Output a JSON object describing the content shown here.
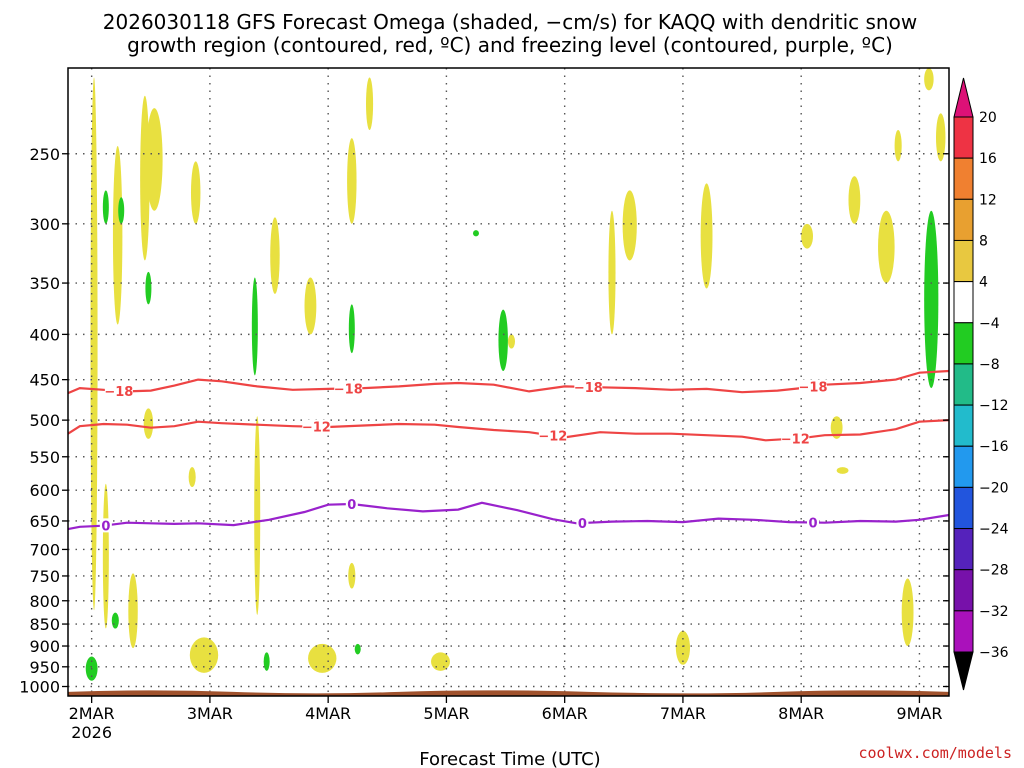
{
  "chart_data": {
    "type": "heatmap",
    "title_line1": "2026030118 GFS Forecast Omega (shaded, −cm/s) for KAQQ with dendritic snow",
    "title_line2": "growth region (contoured, red, ºC) and freezing level (contoured, purple, ºC)",
    "xlabel": "Forecast Time (UTC)",
    "credit": "coolwx.com/models",
    "x_range_days": [
      -0.2,
      7.25
    ],
    "y_range_hpa": [
      200,
      1025
    ],
    "x_ticks": [
      {
        "label": "2MAR",
        "day": 0,
        "sub": "2026"
      },
      {
        "label": "3MAR",
        "day": 1
      },
      {
        "label": "4MAR",
        "day": 2
      },
      {
        "label": "5MAR",
        "day": 3
      },
      {
        "label": "6MAR",
        "day": 4
      },
      {
        "label": "7MAR",
        "day": 5
      },
      {
        "label": "8MAR",
        "day": 6
      },
      {
        "label": "9MAR",
        "day": 7
      }
    ],
    "y_ticks": [
      {
        "label": "250",
        "p": 250
      },
      {
        "label": "300",
        "p": 300
      },
      {
        "label": "350",
        "p": 350
      },
      {
        "label": "400",
        "p": 400
      },
      {
        "label": "450",
        "p": 450
      },
      {
        "label": "500",
        "p": 500
      },
      {
        "label": "550",
        "p": 550
      },
      {
        "label": "600",
        "p": 600
      },
      {
        "label": "650",
        "p": 650
      },
      {
        "label": "700",
        "p": 700
      },
      {
        "label": "750",
        "p": 750
      },
      {
        "label": "800",
        "p": 800
      },
      {
        "label": "850",
        "p": 850
      },
      {
        "label": "900",
        "p": 900
      },
      {
        "label": "950",
        "p": 950
      },
      {
        "label": "1000",
        "p": 1000
      }
    ],
    "colorbar": {
      "levels": [
        {
          "label": "20",
          "color": "#ee3344"
        },
        {
          "label": "16",
          "color": "#f08030"
        },
        {
          "label": "12",
          "color": "#e8a030"
        },
        {
          "label": "8",
          "color": "#e8c840"
        },
        {
          "label": "4",
          "color": "#ffffff"
        },
        {
          "label": "−4",
          "color": "#22cc22"
        },
        {
          "label": "−8",
          "color": "#22bb88"
        },
        {
          "label": "−12",
          "color": "#22bbcc"
        },
        {
          "label": "−16",
          "color": "#2299ee"
        },
        {
          "label": "−20",
          "color": "#2255dd"
        },
        {
          "label": "−24",
          "color": "#5522bb"
        },
        {
          "label": "−28",
          "color": "#7711aa"
        },
        {
          "label": "−32",
          "color": "#aa11bb"
        },
        {
          "label": "−36",
          "color": "#aaaaaa"
        }
      ],
      "top_color": "#dd1177",
      "bottom_color": "#000000",
      "shade_color_up": "#e8e040",
      "shade_color_down": "#22cc22"
    },
    "contours": [
      {
        "name": "minus18",
        "label": "−18",
        "color": "#ee4444",
        "x": [
          -0.2,
          -0.1,
          0.1,
          0.3,
          0.5,
          0.7,
          0.9,
          1.1,
          1.4,
          1.7,
          2.0,
          2.3,
          2.6,
          2.9,
          3.1,
          3.4,
          3.7,
          4.0,
          4.3,
          4.6,
          4.9,
          5.2,
          5.5,
          5.8,
          6.0,
          6.2,
          6.5,
          6.8,
          7.0,
          7.25
        ],
        "p": [
          466,
          460,
          462,
          464,
          463,
          457,
          450,
          452,
          458,
          462,
          461,
          460,
          458,
          455,
          454,
          456,
          464,
          458,
          459,
          460,
          462,
          461,
          465,
          463,
          460,
          456,
          454,
          450,
          442,
          440
        ],
        "labels_at": [
          0.23,
          2.17,
          4.2,
          6.1
        ]
      },
      {
        "name": "minus12",
        "label": "−12",
        "color": "#ee4444",
        "x": [
          -0.2,
          -0.1,
          0.1,
          0.3,
          0.5,
          0.7,
          0.9,
          1.1,
          1.4,
          1.7,
          2.0,
          2.3,
          2.6,
          2.9,
          3.1,
          3.4,
          3.7,
          4.0,
          4.3,
          4.6,
          4.9,
          5.2,
          5.5,
          5.7,
          6.0,
          6.2,
          6.5,
          6.8,
          7.0,
          7.25
        ],
        "p": [
          518,
          508,
          505,
          506,
          510,
          508,
          502,
          504,
          506,
          508,
          509,
          507,
          505,
          506,
          509,
          513,
          516,
          523,
          516,
          518,
          518,
          520,
          522,
          527,
          524,
          520,
          519,
          512,
          502,
          500
        ],
        "labels_at": [
          1.9,
          3.9,
          5.95
        ]
      },
      {
        "name": "zero",
        "label": "0",
        "color": "#9922cc",
        "x": [
          -0.2,
          -0.1,
          0.1,
          0.3,
          0.5,
          0.7,
          0.9,
          1.2,
          1.5,
          1.8,
          2.0,
          2.2,
          2.5,
          2.8,
          3.1,
          3.3,
          3.6,
          3.9,
          4.1,
          4.4,
          4.7,
          5.0,
          5.3,
          5.6,
          5.9,
          6.2,
          6.5,
          6.8,
          7.0,
          7.25
        ],
        "p": [
          664,
          660,
          658,
          653,
          654,
          655,
          654,
          657,
          648,
          635,
          623,
          622,
          629,
          634,
          631,
          620,
          632,
          647,
          654,
          651,
          650,
          652,
          646,
          648,
          652,
          653,
          650,
          651,
          648,
          640
        ],
        "labels_at": [
          0.12,
          2.2,
          4.15,
          6.1
        ]
      }
    ]
  }
}
